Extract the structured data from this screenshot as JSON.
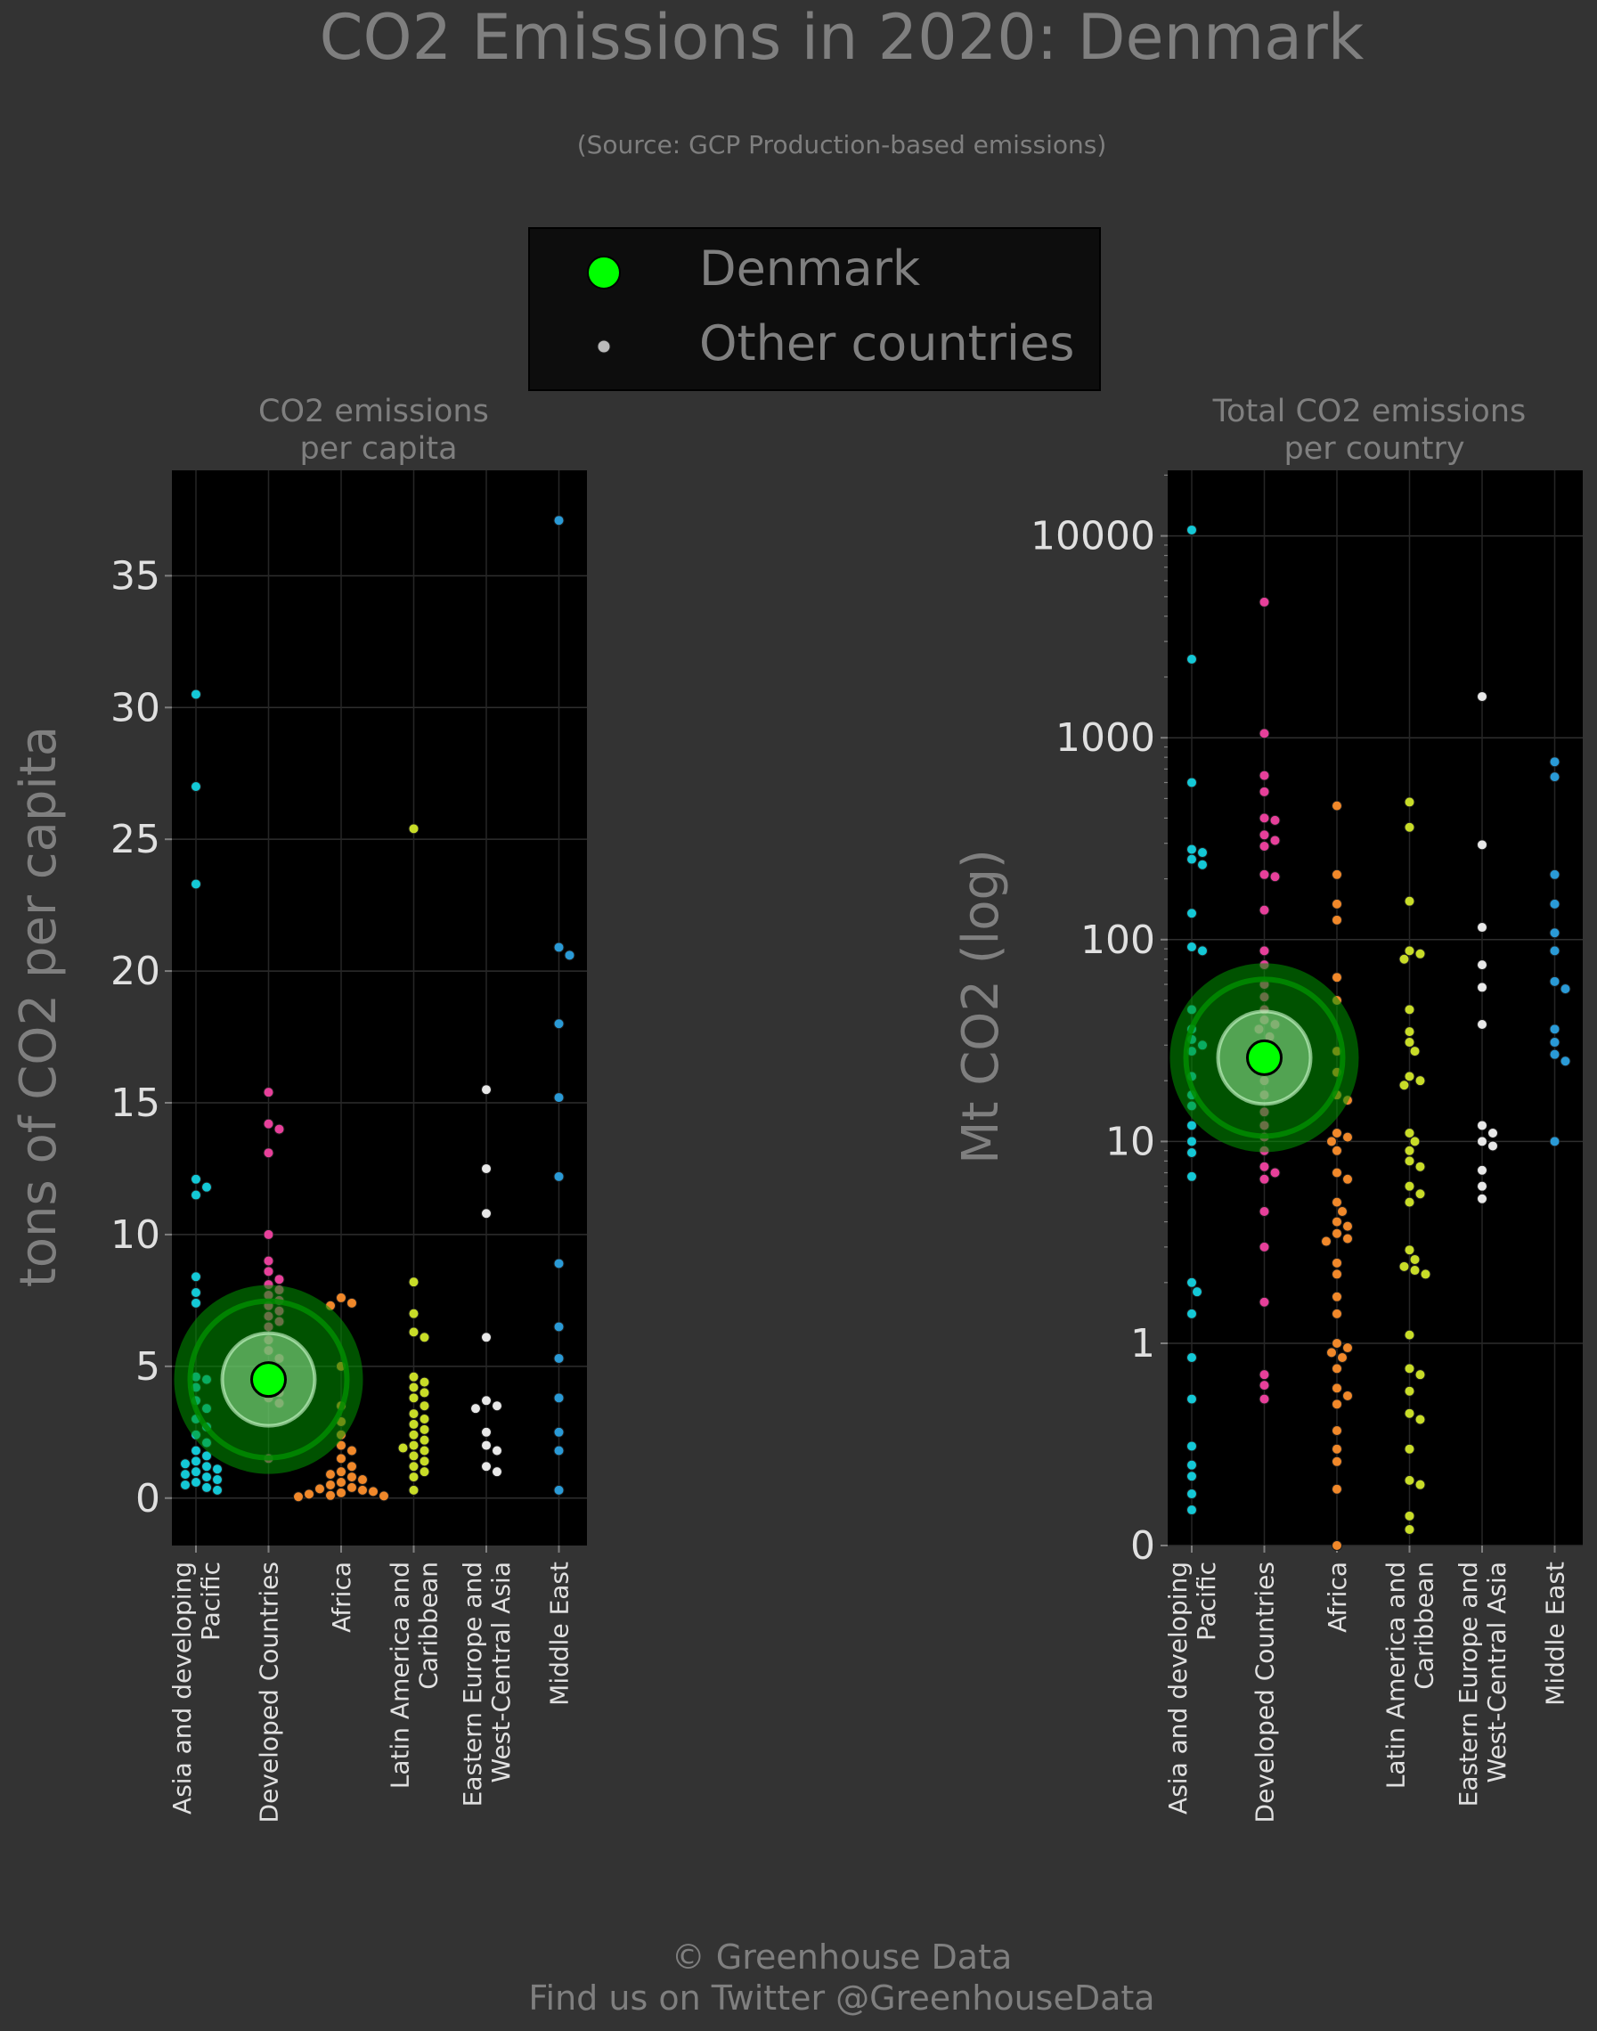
{
  "page": {
    "title": "CO2 Emissions in 2020: Denmark",
    "subtitle": "(Source: GCP Production-based emissions)",
    "footer_line1": "© Greenhouse Data",
    "footer_line2": "Find us on Twitter @GreenhouseData"
  },
  "legend": {
    "items": [
      {
        "label": "Denmark",
        "color": "#00ff00",
        "marker": "large"
      },
      {
        "label": "Other countries",
        "color": "#bbbbbb",
        "marker": "small"
      }
    ]
  },
  "colors": {
    "background": "#333333",
    "plot_background": "#000000",
    "highlight": "#00ff00",
    "regions": [
      "#14c8d6",
      "#e6409a",
      "#f0882a",
      "#c8dc28",
      "#e8e8e8",
      "#2a9ad6"
    ]
  },
  "chart_data": [
    {
      "type": "scatter",
      "title": "CO2 emissions\nper capita",
      "ylabel": "tons of CO2 per capita",
      "scale": "linear",
      "ylim": [
        -1.8,
        39
      ],
      "yticks": [
        0,
        5,
        10,
        15,
        20,
        25,
        30,
        35
      ],
      "grid": true,
      "categories": [
        "Asia and developing Pacific",
        "Developed Countries",
        "Africa",
        "Latin America and Caribbean",
        "Eastern Europe and West-Central Asia",
        "Middle East"
      ],
      "category_labels": [
        [
          "Asia and developing",
          "Pacific"
        ],
        [
          "Developed Countries"
        ],
        [
          "Africa"
        ],
        [
          "Latin America and",
          "Caribbean"
        ],
        [
          "Eastern Europe and",
          "West-Central Asia"
        ],
        [
          "Middle East"
        ]
      ],
      "highlight": {
        "name": "Denmark",
        "category": "Developed Countries",
        "value": 4.5
      },
      "series": [
        {
          "category": "Asia and developing Pacific",
          "values": [
            30.5,
            27.0,
            23.3,
            12.1,
            11.8,
            11.5,
            8.4,
            7.8,
            7.4,
            4.6,
            4.5,
            4.2,
            3.7,
            3.4,
            3.0,
            2.7,
            2.4,
            2.1,
            1.8,
            1.6,
            1.4,
            1.3,
            1.2,
            1.1,
            1.0,
            0.9,
            0.8,
            0.7,
            0.6,
            0.5,
            0.4,
            0.3
          ]
        },
        {
          "category": "Developed Countries",
          "values": [
            15.4,
            14.2,
            14.0,
            13.1,
            10.0,
            9.0,
            8.6,
            8.3,
            8.1,
            7.9,
            7.7,
            7.5,
            7.3,
            7.1,
            6.9,
            6.7,
            6.5,
            6.0,
            5.6,
            5.3,
            5.0,
            4.8,
            4.6,
            4.4,
            4.2,
            4.0,
            3.8,
            3.6,
            1.5
          ]
        },
        {
          "category": "Africa",
          "values": [
            7.6,
            7.4,
            7.3,
            5.0,
            3.5,
            2.9,
            2.4,
            2.0,
            1.8,
            1.5,
            1.2,
            1.0,
            0.9,
            0.8,
            0.7,
            0.6,
            0.5,
            0.4,
            0.35,
            0.3,
            0.25,
            0.2,
            0.15,
            0.1,
            0.08,
            0.05
          ]
        },
        {
          "category": "Latin America and Caribbean",
          "values": [
            25.4,
            8.2,
            7.0,
            6.3,
            6.1,
            4.6,
            4.4,
            4.2,
            4.0,
            3.8,
            3.5,
            3.2,
            3.0,
            2.8,
            2.6,
            2.4,
            2.2,
            2.0,
            1.9,
            1.8,
            1.6,
            1.4,
            1.2,
            1.0,
            0.8,
            0.3
          ]
        },
        {
          "category": "Eastern Europe and West-Central Asia",
          "values": [
            15.5,
            12.5,
            10.8,
            6.1,
            3.7,
            3.5,
            3.4,
            2.5,
            2.0,
            1.8,
            1.2,
            1.0
          ]
        },
        {
          "category": "Middle East",
          "values": [
            37.1,
            20.9,
            20.6,
            18.0,
            15.2,
            12.2,
            8.9,
            6.5,
            5.3,
            3.8,
            2.5,
            1.8,
            0.3
          ]
        }
      ]
    },
    {
      "type": "scatter",
      "title": "Total CO2 emissions\nper country",
      "ylabel": "Mt CO2 (log)",
      "scale": "log",
      "ylim": [
        0,
        20000
      ],
      "yticks": [
        0,
        1,
        10,
        100,
        1000,
        10000
      ],
      "grid": true,
      "categories": [
        "Asia and developing Pacific",
        "Developed Countries",
        "Africa",
        "Latin America and Caribbean",
        "Eastern Europe and West-Central Asia",
        "Middle East"
      ],
      "category_labels": [
        [
          "Asia and developing",
          "Pacific"
        ],
        [
          "Developed Countries"
        ],
        [
          "Africa"
        ],
        [
          "Latin America and",
          "Caribbean"
        ],
        [
          "Eastern Europe and",
          "West-Central Asia"
        ],
        [
          "Middle East"
        ]
      ],
      "highlight": {
        "name": "Denmark",
        "category": "Developed Countries",
        "value": 26
      },
      "series": [
        {
          "category": "Asia and developing Pacific",
          "values": [
            10700,
            2450,
            600,
            280,
            270,
            250,
            235,
            135,
            92,
            88,
            45,
            36,
            32,
            30,
            28,
            21,
            17,
            15,
            12,
            10,
            8.8,
            6.7,
            2.0,
            1.8,
            1.4,
            0.85,
            0.53,
            0.31,
            0.25,
            0.22,
            0.18,
            0.15
          ]
        },
        {
          "category": "Developed Countries",
          "values": [
            4700,
            1050,
            650,
            540,
            400,
            390,
            330,
            310,
            290,
            210,
            205,
            140,
            88,
            75,
            60,
            52,
            45,
            40,
            38,
            36,
            33,
            30,
            24,
            20,
            17,
            14,
            12,
            10.5,
            9,
            7.5,
            7,
            6.5,
            4.5,
            3.0,
            1.6,
            0.7,
            0.62,
            0.53
          ]
        },
        {
          "category": "Africa",
          "values": [
            460,
            210,
            150,
            125,
            65,
            50,
            28,
            22,
            17,
            16,
            11,
            10.5,
            10,
            9,
            7,
            6.5,
            5,
            4.5,
            4,
            3.8,
            3.5,
            3.3,
            3.2,
            2.5,
            2.2,
            1.7,
            1.4,
            1.0,
            0.95,
            0.9,
            0.85,
            0.75,
            0.6,
            0.55,
            0.5,
            0.37,
            0.3,
            0.26,
            0.19,
            0.1
          ]
        },
        {
          "category": "Latin America and Caribbean",
          "values": [
            480,
            360,
            155,
            88,
            85,
            80,
            45,
            35,
            31,
            28,
            21,
            20,
            19,
            11,
            10,
            9,
            8,
            7.5,
            6,
            5.5,
            5,
            2.9,
            2.6,
            2.4,
            2.3,
            2.2,
            1.1,
            0.75,
            0.7,
            0.58,
            0.45,
            0.42,
            0.3,
            0.21,
            0.2,
            0.14,
            0.12
          ]
        },
        {
          "category": "Eastern Europe and West-Central Asia",
          "values": [
            1600,
            295,
            115,
            75,
            58,
            38,
            12,
            11,
            10,
            9.5,
            7.2,
            6.0,
            5.2
          ]
        },
        {
          "category": "Middle East",
          "values": [
            760,
            640,
            210,
            150,
            108,
            88,
            62,
            57,
            36,
            31,
            27,
            25,
            10
          ]
        }
      ]
    }
  ]
}
